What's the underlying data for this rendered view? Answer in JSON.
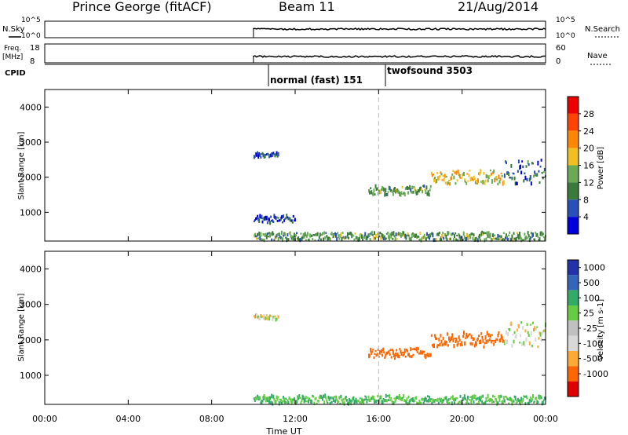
{
  "header": {
    "station": "Prince George (fitACF)",
    "beam": "Beam 11",
    "date": "21/Aug/2014"
  },
  "panels": {
    "nsky": {
      "left_label": "N.Sky",
      "right_label": "N.Search",
      "left_ticks": [
        "10^5",
        "10^0"
      ],
      "right_ticks": [
        "10^5",
        "10^0"
      ]
    },
    "freq": {
      "left_label_line1": "Freq.",
      "left_label_line2": "[MHz]",
      "right_label": "Nave",
      "left_ticks": [
        "18",
        "8"
      ],
      "right_ticks": [
        "60",
        "0"
      ]
    },
    "cpid": {
      "label": "CPID",
      "modes": [
        "normal (fast) 151",
        "twofsound 3503"
      ]
    }
  },
  "colors": {
    "power_scale": [
      "#0000dd",
      "#2850b8",
      "#3a7a3a",
      "#6aaa55",
      "#f0c020",
      "#ff8800",
      "#ff4400",
      "#ee0000"
    ],
    "velocity_scale": [
      "#e00000",
      "#ff6600",
      "#ffaa33",
      "#d8d8d8",
      "#c0c0c0",
      "#66cc44",
      "#33aa66",
      "#3366bb",
      "#2233aa"
    ],
    "guide_line": "#bbbbbb"
  },
  "chart_data": [
    {
      "type": "heatmap",
      "title": "",
      "xlabel": "Time UT",
      "ylabel": "Slant Range [km]",
      "colorbar_label": "Power [dB]",
      "x_ticks": [
        "00:00",
        "04:00",
        "08:00",
        "12:00",
        "16:00",
        "20:00",
        "00:00"
      ],
      "xlim_hours": [
        0,
        24
      ],
      "y_ticks": [
        1000,
        2000,
        3000,
        4000
      ],
      "ylim": [
        180,
        4500
      ],
      "colorbar_ticks": [
        4,
        8,
        12,
        16,
        20,
        24,
        28
      ],
      "colorbar_range": [
        0,
        32
      ],
      "data_start_hour": 10.0,
      "mode_change_hour": 16.0,
      "echo_bands": [
        {
          "t_start": 10.0,
          "t_end": 24.0,
          "range_start": 200,
          "range_end": 420,
          "level": 12
        },
        {
          "t_start": 10.0,
          "t_end": 11.2,
          "range_start": 2560,
          "range_end": 2700,
          "level": 6
        },
        {
          "t_start": 10.0,
          "t_end": 12.0,
          "range_start": 700,
          "range_end": 900,
          "level": 6
        },
        {
          "t_start": 15.5,
          "t_end": 18.5,
          "range_start": 1500,
          "range_end": 1750,
          "level": 12
        },
        {
          "t_start": 18.5,
          "t_end": 22.0,
          "range_start": 1800,
          "range_end": 2200,
          "level": 18
        },
        {
          "t_start": 22.0,
          "t_end": 24.0,
          "range_start": 1800,
          "range_end": 2500,
          "level": 8
        }
      ]
    },
    {
      "type": "heatmap",
      "title": "",
      "xlabel": "Time UT",
      "ylabel": "Slant Range [km]",
      "colorbar_label": "Velocity [m s-1]",
      "x_ticks": [
        "00:00",
        "04:00",
        "08:00",
        "12:00",
        "16:00",
        "20:00",
        "00:00"
      ],
      "xlim_hours": [
        0,
        24
      ],
      "y_ticks": [
        1000,
        2000,
        3000,
        4000
      ],
      "ylim": [
        180,
        4500
      ],
      "colorbar_ticks": [
        "1000",
        "500",
        "100",
        "25",
        "-25",
        "-100",
        "-500",
        "-1000"
      ],
      "data_start_hour": 10.0,
      "mode_change_hour": 16.0,
      "echo_bands": [
        {
          "t_start": 10.0,
          "t_end": 24.0,
          "range_start": 200,
          "range_end": 420,
          "velocity": 100
        },
        {
          "t_start": 10.0,
          "t_end": 11.2,
          "range_start": 2560,
          "range_end": 2700,
          "velocity": 0
        },
        {
          "t_start": 15.5,
          "t_end": 18.5,
          "range_start": 1500,
          "range_end": 1750,
          "velocity": -300
        },
        {
          "t_start": 18.5,
          "t_end": 22.0,
          "range_start": 1800,
          "range_end": 2200,
          "velocity": -300
        },
        {
          "t_start": 22.0,
          "t_end": 24.0,
          "range_start": 1800,
          "range_end": 2500,
          "velocity": 0
        }
      ]
    }
  ]
}
